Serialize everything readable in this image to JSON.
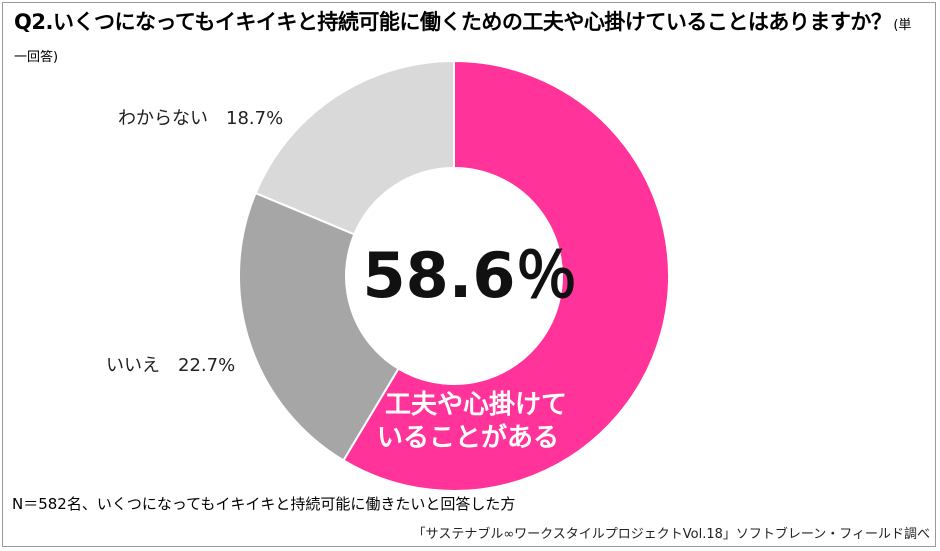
{
  "title": {
    "text": "Q2.いくつになってもイキイキと持続可能に働くための工夫や心掛けていることはありますか？",
    "note": "(単一回答)"
  },
  "chart_data": {
    "type": "pie",
    "series": [
      {
        "name": "工夫や心掛けていることがある",
        "value": 58.6,
        "color": "#ff3399"
      },
      {
        "name": "いいえ",
        "value": 22.7,
        "color": "#a6a6a6"
      },
      {
        "name": "わからない",
        "value": 18.7,
        "color": "#d9d9d9"
      }
    ],
    "unit": "%",
    "center_label": "58.6％",
    "inner_label_lines": [
      "工夫や心掛けて",
      "いることがある"
    ],
    "slice_labels": [
      {
        "text": "わからない　18.7%"
      },
      {
        "text": "いいえ　22.7%"
      }
    ]
  },
  "footnote": "N＝582名、いくつになってもイキイキと持続可能に働きたいと回答した方",
  "source": "「サステナブル∞ワークスタイルプロジェクトVol.18」ソフトブレーン・フィールド調べ"
}
